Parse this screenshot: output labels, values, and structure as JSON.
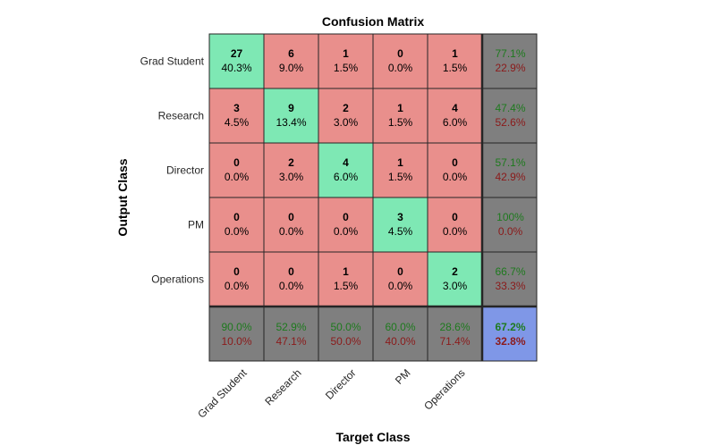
{
  "chart_data": {
    "type": "heatmap",
    "title": "Confusion Matrix",
    "xlabel": "Target Class",
    "ylabel": "Output Class",
    "classes": [
      "Grad Student",
      "Research",
      "Director",
      "PM",
      "Operations"
    ],
    "matrix": [
      [
        27,
        6,
        1,
        0,
        1
      ],
      [
        3,
        9,
        2,
        1,
        4
      ],
      [
        0,
        2,
        4,
        1,
        0
      ],
      [
        0,
        0,
        0,
        3,
        0
      ],
      [
        0,
        0,
        1,
        0,
        2
      ]
    ],
    "cell_percent": [
      [
        "40.3%",
        "9.0%",
        "1.5%",
        "0.0%",
        "1.5%"
      ],
      [
        "4.5%",
        "13.4%",
        "3.0%",
        "1.5%",
        "6.0%"
      ],
      [
        "0.0%",
        "3.0%",
        "6.0%",
        "1.5%",
        "0.0%"
      ],
      [
        "0.0%",
        "0.0%",
        "0.0%",
        "4.5%",
        "0.0%"
      ],
      [
        "0.0%",
        "0.0%",
        "1.5%",
        "0.0%",
        "3.0%"
      ]
    ],
    "row_summary": [
      {
        "correct": "77.1%",
        "incorrect": "22.9%"
      },
      {
        "correct": "47.4%",
        "incorrect": "52.6%"
      },
      {
        "correct": "57.1%",
        "incorrect": "42.9%"
      },
      {
        "correct": "100%",
        "incorrect": "0.0%"
      },
      {
        "correct": "66.7%",
        "incorrect": "33.3%"
      }
    ],
    "col_summary": [
      {
        "correct": "90.0%",
        "incorrect": "10.0%"
      },
      {
        "correct": "52.9%",
        "incorrect": "47.1%"
      },
      {
        "correct": "50.0%",
        "incorrect": "50.0%"
      },
      {
        "correct": "60.0%",
        "incorrect": "40.0%"
      },
      {
        "correct": "28.6%",
        "incorrect": "71.4%"
      }
    ],
    "overall": {
      "correct": "67.2%",
      "incorrect": "32.8%"
    },
    "colors": {
      "diagonal": "#7ee8b4",
      "off_diagonal": "#e98f8c",
      "summary": "#7f7f7f",
      "overall": "#7f97e7",
      "correct_text": "#1e7a1e",
      "incorrect_text": "#8b1a1a",
      "grid": "#262626"
    }
  }
}
